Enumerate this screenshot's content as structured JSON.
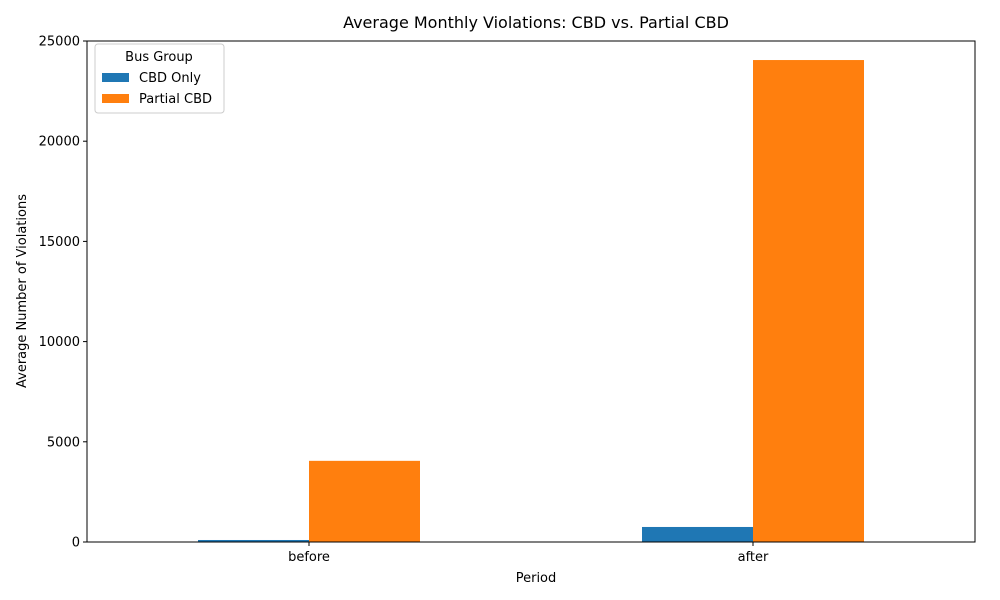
{
  "chart_data": {
    "type": "bar",
    "title": "Average Monthly Violations: CBD vs. Partial CBD",
    "xlabel": "Period",
    "ylabel": "Average Number of Violations",
    "categories": [
      "before",
      "after"
    ],
    "series": [
      {
        "name": "CBD Only",
        "color": "#1f77b4",
        "values": [
          100,
          750
        ]
      },
      {
        "name": "Partial CBD",
        "color": "#ff7f0e",
        "values": [
          4050,
          24050
        ]
      }
    ],
    "ylim": [
      0,
      25000
    ],
    "yticks": [
      0,
      5000,
      10000,
      15000,
      20000,
      25000
    ],
    "grid": false,
    "legend": {
      "title": "Bus Group",
      "placement": "top-left"
    }
  }
}
